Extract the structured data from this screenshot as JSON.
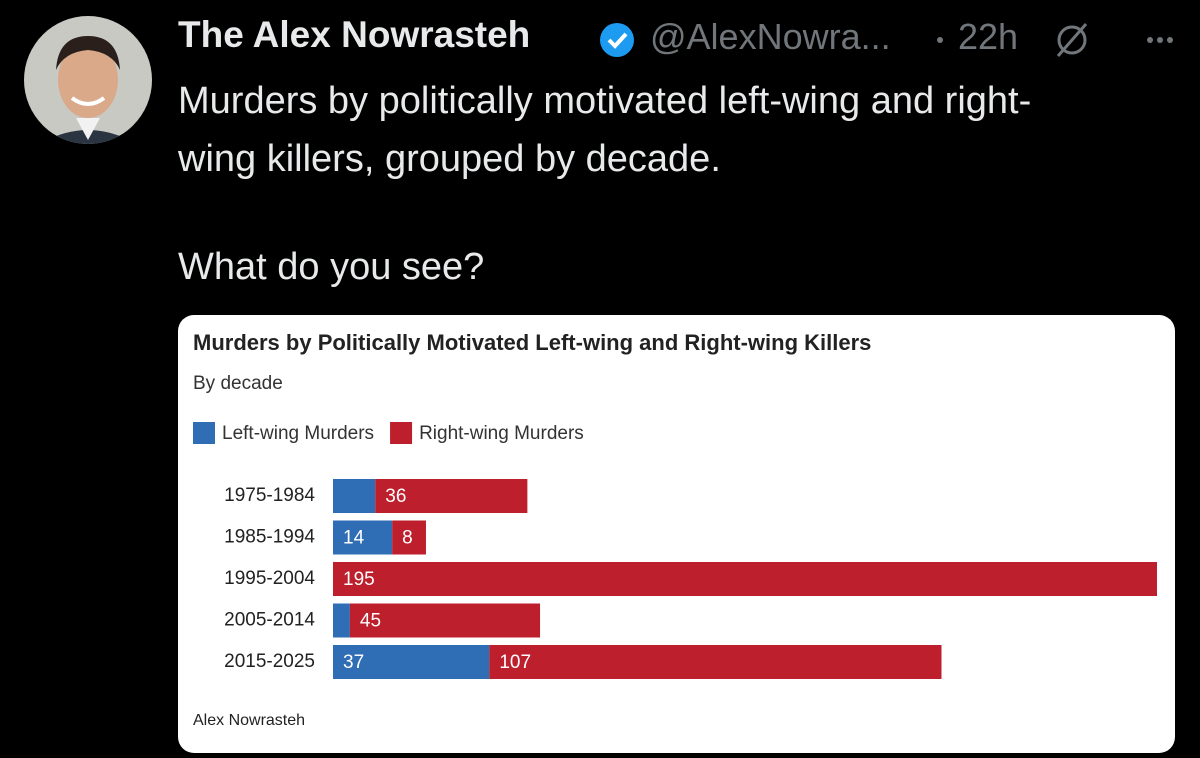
{
  "tweet": {
    "author_name": "The Alex Nowrasteh",
    "handle": "@AlexNowra...",
    "time": "22h",
    "text": [
      "Murders by politically motivated left-wing and right-wing killers, grouped by decade.",
      "What do you see?"
    ]
  },
  "chart_data": {
    "type": "stacked-barh",
    "title": "Murders by Politically Motivated Left-wing and Right-wing Killers",
    "subtitle": "By decade",
    "source": "Alex Nowrasteh",
    "categories": [
      "1975-1984",
      "1985-1994",
      "1995-2004",
      "2005-2014",
      "2015-2025"
    ],
    "series": [
      {
        "name": "Left-wing Murders",
        "color": "#2f6db5",
        "values": [
          10,
          14,
          0,
          4,
          37
        ],
        "value_labels": [
          null,
          "14",
          null,
          null,
          "37"
        ]
      },
      {
        "name": "Right-wing Murders",
        "color": "#bd1f2d",
        "values": [
          36,
          8,
          195,
          45,
          107
        ],
        "value_labels": [
          "36",
          "8",
          "195",
          "45",
          "107"
        ]
      }
    ]
  }
}
